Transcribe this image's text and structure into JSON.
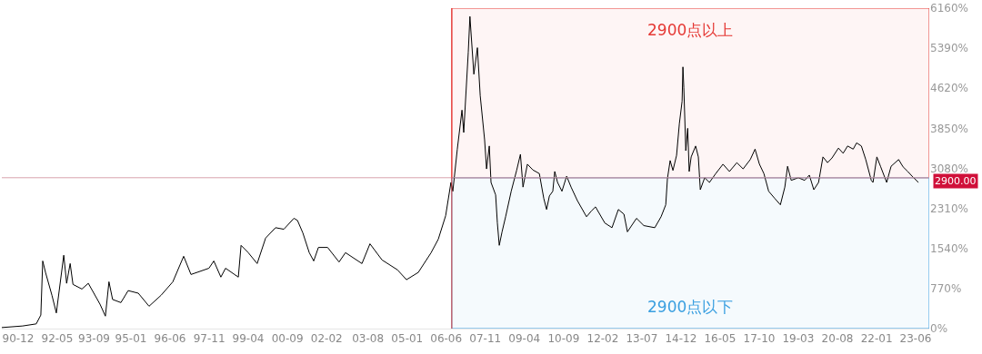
{
  "chart_data": {
    "type": "line",
    "grid": false,
    "marker": "none",
    "line_style": "solid",
    "xlim": [
      "1990-04-29",
      "2023-11-28"
    ],
    "xticks": [
      {
        "value": "1990-12-01",
        "label": "90-12"
      },
      {
        "value": "1992-05-01",
        "label": "92-05"
      },
      {
        "value": "1993-09-01",
        "label": "93-09"
      },
      {
        "value": "1995-01-01",
        "label": "95-01"
      },
      {
        "value": "1996-06-01",
        "label": "96-06"
      },
      {
        "value": "1997-11-01",
        "label": "97-11"
      },
      {
        "value": "1999-04-01",
        "label": "99-04"
      },
      {
        "value": "2000-09-01",
        "label": "00-09"
      },
      {
        "value": "2002-02-01",
        "label": "02-02"
      },
      {
        "value": "2003-08-01",
        "label": "03-08"
      },
      {
        "value": "2005-01-01",
        "label": "05-01"
      },
      {
        "value": "2006-06-01",
        "label": "06-06"
      },
      {
        "value": "2007-11-01",
        "label": "07-11"
      },
      {
        "value": "2009-04-01",
        "label": "09-04"
      },
      {
        "value": "2010-09-01",
        "label": "10-09"
      },
      {
        "value": "2012-02-01",
        "label": "12-02"
      },
      {
        "value": "2013-07-01",
        "label": "13-07"
      },
      {
        "value": "2014-12-01",
        "label": "14-12"
      },
      {
        "value": "2016-05-01",
        "label": "16-05"
      },
      {
        "value": "2017-10-01",
        "label": "17-10"
      },
      {
        "value": "2019-03-01",
        "label": "19-03"
      },
      {
        "value": "2020-08-01",
        "label": "20-08"
      },
      {
        "value": "2022-01-01",
        "label": "22-01"
      },
      {
        "value": "2023-06-01",
        "label": "23-06"
      }
    ],
    "ylim": [
      0,
      6160
    ],
    "yticks": [
      {
        "value": 0,
        "label": "0%"
      },
      {
        "value": 770,
        "label": "770%"
      },
      {
        "value": 1540,
        "label": "1540%"
      },
      {
        "value": 2310,
        "label": "2310%"
      },
      {
        "value": 3080,
        "label": "3080%"
      },
      {
        "value": 3850,
        "label": "3850%"
      },
      {
        "value": 4620,
        "label": "4620%"
      },
      {
        "value": 5390,
        "label": "5390%"
      },
      {
        "value": 6160,
        "label": "6160%"
      }
    ],
    "x": [
      "1990-04-29",
      "1991-01-29",
      "1991-07-28",
      "1991-09-27",
      "1991-10-22",
      "1991-11-28",
      "1992-02-21",
      "1992-04-19",
      "1992-07-26",
      "1992-09-02",
      "1992-10-19",
      "1992-11-25",
      "1993-03-23",
      "1993-06-16",
      "1993-11-17",
      "1994-01-28",
      "1994-03-16",
      "1994-05-03",
      "1994-08-21",
      "1994-11-25",
      "1995-04-08",
      "1995-08-28",
      "1996-02-03",
      "1996-07-08",
      "1996-11-28",
      "1997-03-05",
      "1997-10-28",
      "1998-01-01",
      "1998-04-04",
      "1998-06-05",
      "1998-11-21",
      "1998-12-27",
      "1999-04-01",
      "1999-07-28",
      "1999-11-17",
      "2000-03-27",
      "2000-07-15",
      "2000-11-25",
      "2001-01-11",
      "2001-03-23",
      "2001-06-16",
      "2001-08-14",
      "2001-10-15",
      "2002-02-14",
      "2002-07-15",
      "2002-10-08",
      "2003-05-14",
      "2003-08-28",
      "2004-02-03",
      "2004-08-25",
      "2004-12-23",
      "2005-05-28",
      "2005-11-14",
      "2006-02-17",
      "2006-05-25",
      "2006-08-03",
      "2006-08-28",
      "2006-10-26",
      "2006-12-27",
      "2007-01-19",
      "2007-03-20",
      "2007-04-11",
      "2007-06-02",
      "2007-07-19",
      "2007-08-25",
      "2007-10-22",
      "2007-11-17",
      "2007-12-23",
      "2008-01-15",
      "2008-03-16",
      "2008-04-08",
      "2008-05-03",
      "2008-06-09",
      "2008-07-26",
      "2008-10-08",
      "2008-12-20",
      "2009-02-07",
      "2009-03-13",
      "2009-05-10",
      "2009-07-22",
      "2009-10-15",
      "2009-12-13",
      "2010-01-19",
      "2010-02-25",
      "2010-04-11",
      "2010-05-07",
      "2010-06-13",
      "2010-08-10",
      "2010-10-11",
      "2010-12-09",
      "2011-03-02",
      "2011-07-01",
      "2011-09-02",
      "2011-10-28",
      "2012-02-28",
      "2012-06-02",
      "2012-08-25",
      "2012-11-07",
      "2012-12-23",
      "2013-04-22",
      "2013-07-28",
      "2013-12-20",
      "2014-03-13",
      "2014-05-14",
      "2014-06-05",
      "2014-07-11",
      "2014-08-17",
      "2014-10-04",
      "2014-11-10",
      "2014-12-16",
      "2014-12-27",
      "2015-01-08",
      "2015-02-03",
      "2015-02-28",
      "2015-03-20",
      "2015-04-15",
      "2015-06-13",
      "2015-07-19",
      "2015-08-14",
      "2015-10-11",
      "2015-12-13",
      "2016-03-05",
      "2016-06-09",
      "2016-09-02",
      "2016-12-09",
      "2017-03-02",
      "2017-06-05",
      "2017-08-07",
      "2017-10-04",
      "2017-12-02",
      "2018-02-03",
      "2018-04-26",
      "2018-07-08",
      "2018-09-05",
      "2018-10-11",
      "2018-11-28",
      "2019-03-02",
      "2019-05-25",
      "2019-07-26",
      "2019-09-23",
      "2019-11-25",
      "2020-01-22",
      "2020-03-23",
      "2020-05-21",
      "2020-08-14",
      "2020-10-15",
      "2020-12-13",
      "2021-02-25",
      "2021-04-11",
      "2021-06-13",
      "2021-08-10",
      "2021-10-22",
      "2021-11-14",
      "2022-01-04",
      "2022-02-21",
      "2022-05-14",
      "2022-07-11",
      "2022-10-19",
      "2022-12-16",
      "2023-02-17",
      "2023-04-15",
      "2023-07-08"
    ],
    "series": [
      {
        "color": "#000000",
        "values": [
          20,
          50,
          90,
          260,
          1300,
          1080,
          640,
          300,
          1410,
          870,
          1250,
          850,
          760,
          870,
          470,
          240,
          900,
          560,
          500,
          730,
          680,
          430,
          640,
          900,
          1390,
          1040,
          1160,
          1300,
          990,
          1160,
          990,
          1600,
          1460,
          1250,
          1740,
          1940,
          1910,
          2120,
          2080,
          1840,
          1460,
          1300,
          1560,
          1560,
          1280,
          1460,
          1250,
          1630,
          1320,
          1130,
          940,
          1080,
          1460,
          1720,
          2170,
          2810,
          2640,
          3450,
          4200,
          3770,
          5310,
          6000,
          4890,
          5400,
          4480,
          3630,
          3070,
          3510,
          2810,
          2570,
          2030,
          1600,
          1860,
          2150,
          2640,
          3050,
          3350,
          2720,
          3160,
          3050,
          2980,
          2500,
          2290,
          2550,
          2640,
          3020,
          2810,
          2640,
          2930,
          2720,
          2460,
          2150,
          2260,
          2340,
          2030,
          1940,
          2290,
          2200,
          1860,
          2120,
          1980,
          1940,
          2150,
          2380,
          2880,
          3230,
          3040,
          3330,
          3940,
          4370,
          5030,
          4630,
          3420,
          3850,
          3020,
          3300,
          3510,
          3300,
          2670,
          2900,
          2810,
          2980,
          3160,
          3020,
          3190,
          3070,
          3250,
          3450,
          3160,
          2980,
          2640,
          2500,
          2380,
          2720,
          3120,
          2850,
          2900,
          2850,
          2950,
          2670,
          2810,
          3300,
          3190,
          3280,
          3470,
          3370,
          3510,
          3450,
          3570,
          3510,
          3250,
          2850,
          2810,
          3300,
          3120,
          2810,
          3120,
          3250,
          3110,
          3020,
          2930,
          2810
        ]
      }
    ],
    "ref_lines": [
      {
        "axis": "y",
        "value": 2900,
        "label": "2900.00",
        "color": "#d9a3ad"
      },
      {
        "axis": "x",
        "value": "2006-08-14",
        "color": "#e53935"
      }
    ],
    "bands": [
      {
        "axis": "y",
        "from": 2900,
        "to": 6160,
        "label": "2900点以上",
        "color": "#e53935"
      },
      {
        "axis": "y",
        "from": 0,
        "to": 2900,
        "label": "2900点以下",
        "color": "#3a9fe0"
      }
    ]
  }
}
